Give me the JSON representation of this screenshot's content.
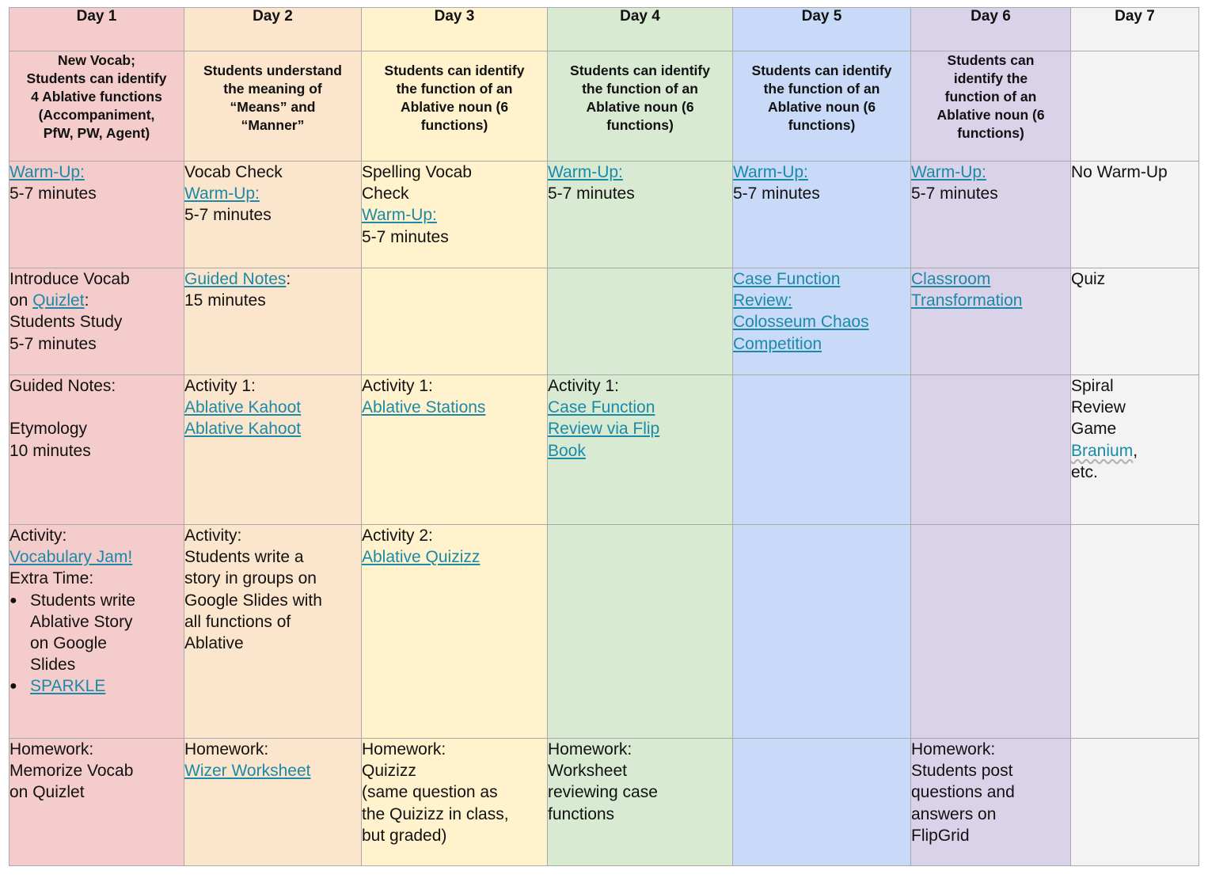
{
  "days": [
    "Day 1",
    "Day 2",
    "Day 3",
    "Day 4",
    "Day 5",
    "Day 6",
    "Day 7"
  ],
  "objectives": {
    "d1": [
      "New Vocab;",
      "Students can identify",
      "4 Ablative functions",
      "(Accompaniment,",
      "PfW, PW, Agent)"
    ],
    "d2": [
      "Students understand",
      "the meaning of",
      "“Means” and",
      "“Manner”"
    ],
    "d3": [
      "Students can identify",
      "the function of an",
      "Ablative noun (6",
      "functions)"
    ],
    "d4": [
      "Students can identify",
      "the function of an",
      "Ablative noun (6",
      "functions)"
    ],
    "d5": [
      "Students can identify",
      "the function of an",
      "Ablative noun (6",
      "functions)"
    ],
    "d6": [
      "Students can",
      "identify the",
      "function of an",
      "Ablative noun (6",
      "functions)"
    ]
  },
  "warmup": {
    "d1": {
      "link": "Warm-Up:",
      "time": "5-7 minutes"
    },
    "d2": {
      "check": "Vocab Check",
      "link": "Warm-Up:",
      "time": "5-7 minutes"
    },
    "d3": {
      "check1": "Spelling Vocab",
      "check2": "Check",
      "link": "Warm-Up:",
      "time": "5-7 minutes"
    },
    "d4": {
      "link": "Warm-Up:",
      "time": "5-7 minutes"
    },
    "d5": {
      "link": "Warm-Up:",
      "time": "5-7 minutes"
    },
    "d6": {
      "link": "Warm-Up:",
      "time": "5-7 minutes"
    },
    "d7": {
      "text": "No Warm-Up"
    }
  },
  "row4": {
    "d1": {
      "l1": "Introduce Vocab",
      "on": "on ",
      "link": "Quizlet",
      "colon": ":",
      "l3": "Students Study",
      "l4": "5-7 minutes"
    },
    "d2": {
      "link": "Guided Notes",
      "colon": ":",
      "time": "15 minutes"
    },
    "d5": {
      "l1": "Case Function",
      "l2": "Review:",
      "l3": "Colosseum Chaos",
      "l4": "Competition"
    },
    "d6": {
      "l1": "Classroom",
      "l2": "Transformation"
    },
    "d7": {
      "text": "Quiz"
    }
  },
  "row5": {
    "d1": {
      "l1": "Guided Notes:",
      "l2": "Etymology",
      "l3": "10 minutes"
    },
    "d2": {
      "l1": "Activity 1:",
      "link1": "Ablative Kahoot",
      "link2": "Ablative Kahoot"
    },
    "d3": {
      "l1": "Activity 1:",
      "link": "Ablative Stations"
    },
    "d4": {
      "l1": "Activity 1:",
      "link1": "Case Function",
      "link2": "Review via Flip",
      "link3": "Book"
    },
    "d7": {
      "l1": "Spiral",
      "l2": "Review",
      "l3": "Game",
      "link": "Branium",
      "suffix": ",",
      "l5": "etc."
    }
  },
  "row6": {
    "d1": {
      "l1": "Activity:",
      "link": "Vocabulary Jam!",
      "l2": "Extra Time:",
      "b1": [
        "Students write",
        "Ablative Story",
        "on Google",
        "Slides"
      ],
      "b2": "SPARKLE"
    },
    "d2": {
      "l1": "Activity:",
      "l2": "Students write a",
      "l3": "story in groups on",
      "l4": "Google Slides with",
      "l5": "all functions of",
      "l6": "Ablative"
    },
    "d3": {
      "l1": "Activity 2:",
      "link": "Ablative Quizizz"
    }
  },
  "homework": {
    "d1": {
      "l1": "Homework:",
      "l2": "Memorize Vocab",
      "l3": "on Quizlet"
    },
    "d2": {
      "l1": "Homework:",
      "link": "Wizer Worksheet"
    },
    "d3": {
      "l1": "Homework:",
      "l2": "Quizizz",
      "l3": "(same question as",
      "l4": "the Quizizz in class,",
      "l5": "but  graded)"
    },
    "d4": {
      "l1": "Homework:",
      "l2": "Worksheet",
      "l3": "reviewing case",
      "l4": "functions"
    },
    "d6": {
      "l1": "Homework:",
      "l2": "Students post",
      "l3": "questions and",
      "l4": "answers on",
      "l5": "FlipGrid"
    }
  },
  "colors": {
    "day1": "#f4cccc",
    "day2": "#fce5cd",
    "day3": "#fff2cc",
    "day4": "#d9ead3",
    "day5": "#c9daf8",
    "day6": "#d9d2e9",
    "day7": "#f3f3f3",
    "link": "#1a8aa8",
    "border": "#a9a9a9"
  }
}
